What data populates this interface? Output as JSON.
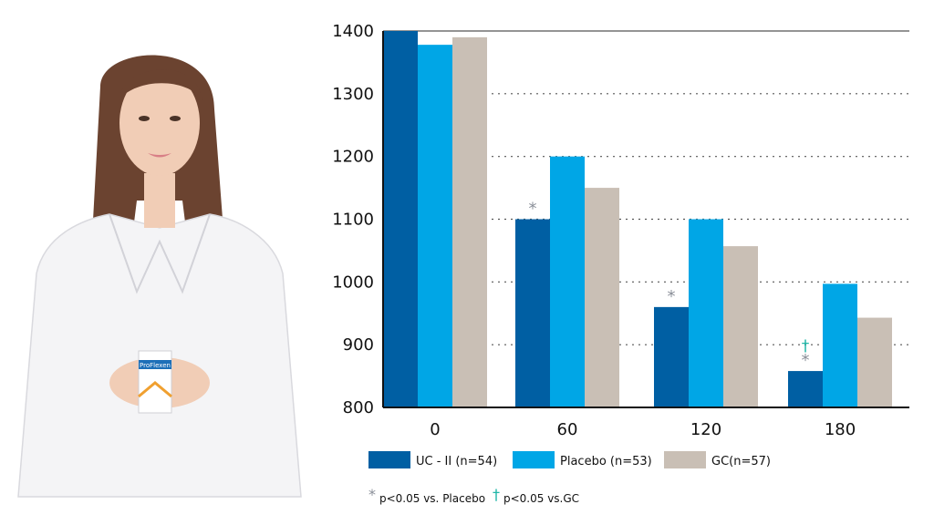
{
  "colors": {
    "uc": "#005fa3",
    "placebo": "#00a6e6",
    "gc": "#c9bfb5",
    "star": "#8a8f98",
    "dagger": "#1fb6a8",
    "coat": "#f4f4f6",
    "hair": "#6b4330",
    "skin": "#f1cdb6"
  },
  "product": {
    "brand": "ProFlexen"
  },
  "chart_data": {
    "type": "bar",
    "categories": [
      "0",
      "60",
      "120",
      "180"
    ],
    "series": [
      {
        "name": "UC - II (n=54)",
        "values": [
          1400,
          1100,
          960,
          858
        ]
      },
      {
        "name": "Placebo (n=53)",
        "values": [
          1378,
          1200,
          1100,
          997
        ]
      },
      {
        "name": "GC(n=57)",
        "values": [
          1390,
          1150,
          1057,
          943
        ]
      }
    ],
    "y_ticks": [
      "1400",
      "1300",
      "1200",
      "1100",
      "1000",
      "900",
      "800"
    ],
    "ylim": [
      800,
      1400
    ],
    "grid": "dotted horizontal",
    "legend_position": "bottom",
    "annotations": {
      "star": [
        false,
        true,
        true,
        true
      ],
      "dagger": [
        false,
        false,
        false,
        true
      ]
    },
    "notes": [
      {
        "symbol": "*",
        "text": "p<0.05 vs. Placebo"
      },
      {
        "symbol": "†",
        "text": "p<0.05 vs.GC"
      }
    ],
    "title": "",
    "xlabel": "",
    "ylabel": ""
  }
}
